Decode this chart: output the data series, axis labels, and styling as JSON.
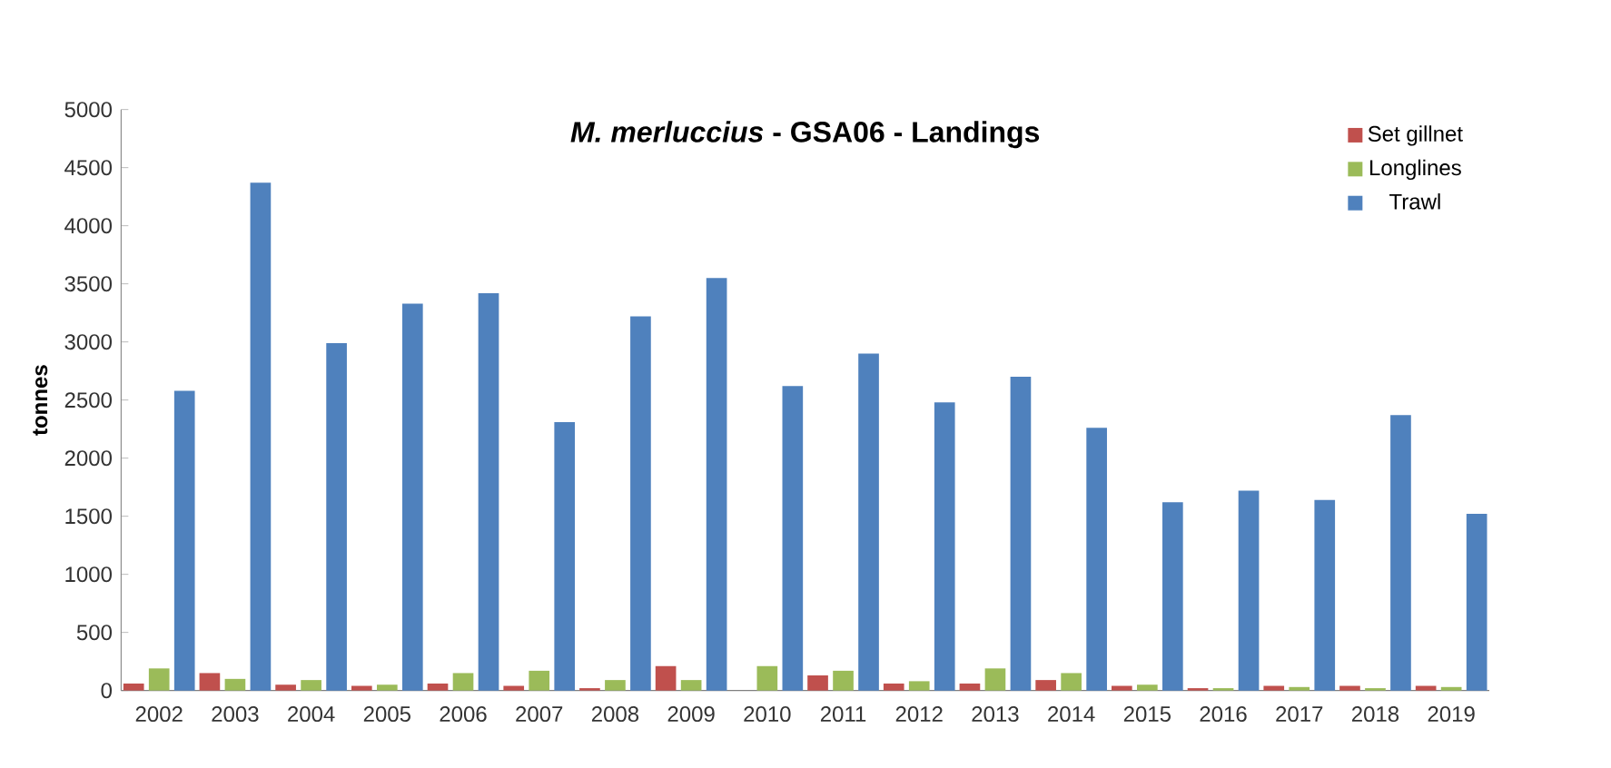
{
  "chart_data": {
    "type": "bar",
    "title": "*M. merluccius*  -  GSA06 - Landings",
    "ylabel": "tonnes",
    "categories": [
      "2002",
      "2003",
      "2004",
      "2005",
      "2006",
      "2007",
      "2008",
      "2009",
      "2010",
      "2011",
      "2012",
      "2013",
      "2014",
      "2015",
      "2016",
      "2017",
      "2018",
      "2019"
    ],
    "series": [
      {
        "name": "Set gillnet",
        "color": "#c0504d",
        "values": [
          60,
          150,
          50,
          40,
          60,
          40,
          20,
          210,
          0,
          130,
          60,
          60,
          90,
          40,
          20,
          40,
          40,
          40
        ]
      },
      {
        "name": "Longlines",
        "color": "#9bbb59",
        "values": [
          190,
          100,
          90,
          50,
          150,
          170,
          90,
          90,
          210,
          170,
          80,
          190,
          150,
          50,
          20,
          30,
          20,
          30
        ]
      },
      {
        "name": "Trawl",
        "color": "#4f81bd",
        "values": [
          2580,
          4370,
          2990,
          3330,
          3420,
          2310,
          3220,
          3550,
          2620,
          2900,
          2480,
          2700,
          2260,
          1620,
          1720,
          1640,
          2370,
          1520
        ]
      }
    ],
    "ylim": [
      0,
      5000
    ],
    "yticks": [
      0,
      500,
      1000,
      1500,
      2000,
      2500,
      3000,
      3500,
      4000,
      4500,
      5000
    ],
    "legend": "top right",
    "grid": false
  }
}
